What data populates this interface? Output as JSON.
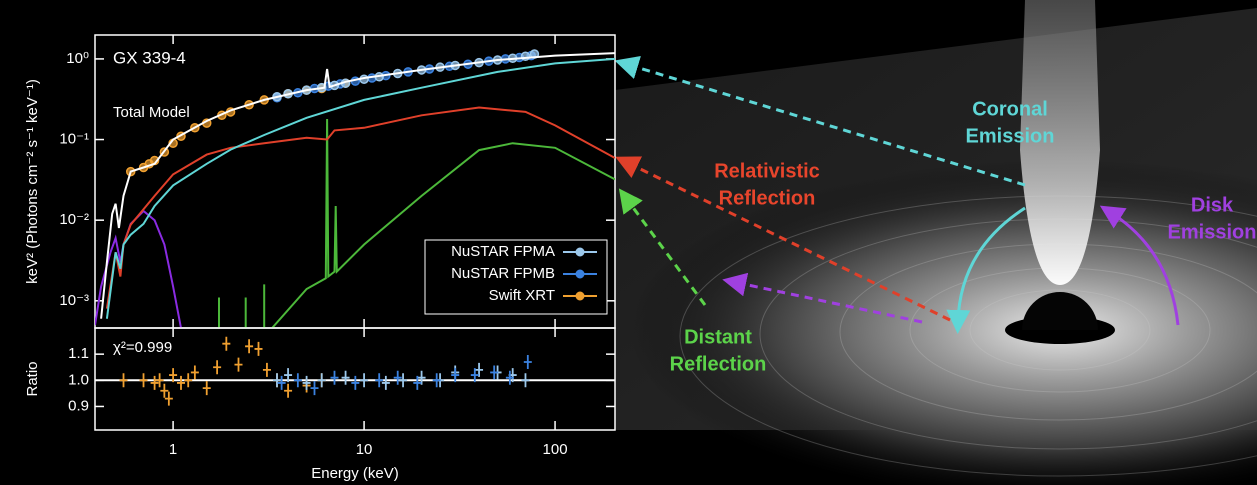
{
  "chart_data": [
    {
      "type": "line",
      "title": "GX 339-4",
      "annotation": "Total Model",
      "xscale": "log",
      "yscale": "log",
      "xlim": [
        0.39,
        206
      ],
      "ylim": [
        0.00046,
        1.98
      ],
      "xticks": [
        1,
        10,
        100
      ],
      "show_xtick_labels": false,
      "yticks": [
        {
          "value": 0.001,
          "label": "10⁻³"
        },
        {
          "value": 0.01,
          "label": "10⁻²"
        },
        {
          "value": 0.1,
          "label": "10⁻¹"
        },
        {
          "value": 1,
          "label": "10⁰"
        }
      ],
      "ylabel": "keV² (Photons cm⁻² s⁻¹ keV⁻¹)",
      "legend": "lower right",
      "series": [
        {
          "mode": "line",
          "color": "#8a2be2",
          "x": [
            0.39,
            0.42,
            0.47,
            0.5,
            0.53,
            0.55,
            0.6,
            0.7,
            0.8,
            0.9,
            1.0,
            1.1
          ],
          "values": [
            0.0005,
            0.0015,
            0.004,
            0.006,
            0.003,
            0.005,
            0.009,
            0.013,
            0.01,
            0.005,
            0.0015,
            0.00046
          ]
        },
        {
          "mode": "line",
          "color": "#4cb83a",
          "x": [
            1.74,
            1.74,
            1.76,
            2.4,
            2.4,
            2.42,
            3.0,
            3.0,
            3.05,
            3.3,
            5,
            6.3,
            6.4,
            6.5,
            7.0,
            7.1,
            7.2,
            10,
            20,
            40,
            60,
            100,
            206
          ],
          "values": [
            0.00046,
            0.0011,
            null,
            0.00046,
            0.0011,
            null,
            0.00046,
            0.0016,
            null,
            0.00046,
            0.0014,
            0.0019,
            0.18,
            0.002,
            0.0023,
            0.015,
            0.0023,
            0.005,
            0.02,
            0.074,
            0.09,
            0.079,
            0.032
          ]
        },
        {
          "mode": "line",
          "color": "#e0402a",
          "x": [
            0.45,
            0.5,
            0.53,
            0.55,
            0.6,
            0.8,
            1,
            1.5,
            2,
            3,
            5,
            6.4,
            7,
            10,
            20,
            40,
            70,
            100,
            206
          ],
          "values": [
            0.0008,
            0.004,
            0.002,
            0.005,
            0.0088,
            0.02,
            0.037,
            0.065,
            0.079,
            0.09,
            0.105,
            0.1,
            0.13,
            0.14,
            0.2,
            0.25,
            0.22,
            0.15,
            0.059
          ]
        },
        {
          "mode": "line",
          "color": "#5fd6d6",
          "x": [
            0.45,
            0.5,
            0.53,
            0.55,
            0.6,
            0.7,
            0.8,
            1,
            1.5,
            2,
            3,
            5,
            10,
            20,
            50,
            100,
            206
          ],
          "values": [
            0.0006,
            0.004,
            0.0025,
            0.005,
            0.0066,
            0.009,
            0.015,
            0.027,
            0.05,
            0.075,
            0.114,
            0.186,
            0.31,
            0.44,
            0.69,
            0.88,
            1.0
          ]
        },
        {
          "mode": "markers",
          "name": "Swift XRT",
          "color": "#f0a030",
          "x": [
            0.6,
            0.7,
            0.75,
            0.8,
            0.9,
            1,
            1.1,
            1.3,
            1.5,
            1.8,
            2,
            2.5,
            3,
            4,
            5,
            6,
            8
          ],
          "values": [
            0.04,
            0.045,
            0.05,
            0.055,
            0.07,
            0.09,
            0.11,
            0.14,
            0.16,
            0.2,
            0.22,
            0.27,
            0.31,
            0.37,
            0.41,
            0.43,
            0.5
          ]
        },
        {
          "mode": "markers",
          "name": "NuSTAR FPMB",
          "color": "#3b82e0",
          "x": [
            3.5,
            4.5,
            5.5,
            6.5,
            7.5,
            9,
            11,
            13,
            17,
            22,
            28,
            35,
            45,
            55,
            65,
            75
          ],
          "values": [
            0.33,
            0.38,
            0.43,
            0.46,
            0.49,
            0.53,
            0.58,
            0.62,
            0.69,
            0.75,
            0.81,
            0.86,
            0.94,
            1.0,
            1.04,
            1.1
          ]
        },
        {
          "mode": "markers",
          "name": "NuSTAR FPMA",
          "color": "#9cc8ec",
          "x": [
            3.5,
            4,
            5,
            6,
            7,
            8,
            10,
            12,
            15,
            20,
            25,
            30,
            40,
            50,
            60,
            70,
            78
          ],
          "values": [
            0.34,
            0.37,
            0.41,
            0.44,
            0.47,
            0.5,
            0.56,
            0.6,
            0.66,
            0.73,
            0.79,
            0.83,
            0.9,
            0.97,
            1.02,
            1.08,
            1.15
          ]
        },
        {
          "mode": "line",
          "color": "#ffffff",
          "x": [
            0.42,
            0.45,
            0.48,
            0.5,
            0.52,
            0.55,
            0.6,
            0.7,
            0.8,
            1,
            1.5,
            2,
            3,
            5,
            6.2,
            6.4,
            6.6,
            8,
            10,
            20,
            50,
            100,
            206
          ],
          "values": [
            0.0006,
            0.003,
            0.012,
            0.016,
            0.008,
            0.02,
            0.04,
            0.045,
            0.05,
            0.1,
            0.17,
            0.23,
            0.31,
            0.41,
            0.44,
            0.75,
            0.45,
            0.52,
            0.58,
            0.73,
            0.97,
            1.1,
            1.18
          ]
        }
      ]
    },
    {
      "type": "line",
      "annotation": "χ²=0.999",
      "xscale": "log",
      "yscale": "linear",
      "xlim": [
        0.39,
        206
      ],
      "ylim": [
        0.81,
        1.2
      ],
      "xticks": [
        1,
        10,
        100
      ],
      "show_xtick_labels": true,
      "yticks": [
        0.9,
        {
          "value": 1,
          "label": "1.0"
        },
        1.1
      ],
      "reference_line": 1,
      "xlabel": "Energy (keV)",
      "ylabel": "Ratio",
      "series": [
        {
          "mode": "crosses",
          "color": "#f0a030",
          "x": [
            0.55,
            0.7,
            0.8,
            0.85,
            0.9,
            0.95,
            1,
            1.1,
            1.2,
            1.3,
            1.5,
            1.7,
            1.9,
            2.2,
            2.5,
            2.8,
            3.1,
            3.5,
            4,
            5,
            6
          ],
          "values": [
            1.0,
            1.0,
            0.99,
            1.0,
            0.96,
            0.93,
            1.02,
            0.99,
            1.0,
            1.03,
            0.97,
            1.05,
            1.14,
            1.06,
            1.13,
            1.12,
            1.04,
            1.0,
            0.96,
            0.98,
            1.0
          ]
        },
        {
          "mode": "crosses",
          "color": "#9cc8ec",
          "x": [
            3.5,
            4,
            5,
            6,
            8,
            10,
            13,
            16,
            20,
            25,
            30,
            40,
            50,
            60,
            70
          ],
          "values": [
            1.0,
            1.02,
            0.99,
            1.0,
            1.01,
            1.0,
            0.99,
            1.0,
            1.01,
            1.0,
            1.03,
            1.04,
            1.03,
            1.02,
            1.0
          ]
        },
        {
          "mode": "crosses",
          "color": "#3b82e0",
          "x": [
            3.7,
            4.5,
            5.5,
            7,
            9,
            12,
            15,
            19,
            24,
            30,
            38,
            48,
            58,
            72
          ],
          "values": [
            0.99,
            1.0,
            0.97,
            1.01,
            0.99,
            1.0,
            1.01,
            0.99,
            1.0,
            1.02,
            1.02,
            1.03,
            1.01,
            1.07
          ]
        }
      ]
    }
  ],
  "illustration": {
    "labels": [
      {
        "lines": [
          "Coronal",
          "Emission"
        ],
        "color": "#5fd6d6"
      },
      {
        "lines": [
          "Relativistic",
          "Reflection"
        ],
        "color": "#e8452c"
      },
      {
        "lines": [
          "Disk",
          "Emission"
        ],
        "color": "#a040e0"
      },
      {
        "lines": [
          "Distant",
          "Reflection"
        ],
        "color": "#5cd34a"
      }
    ]
  }
}
